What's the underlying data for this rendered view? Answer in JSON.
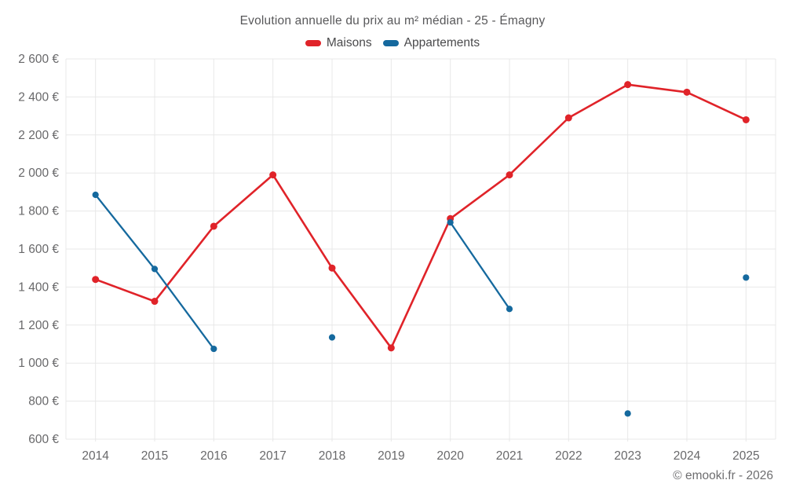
{
  "chart_data": {
    "type": "line",
    "title": "Evolution annuelle du prix au m² médian - 25 - Émagny",
    "xlabel": "",
    "ylabel": "",
    "categories": [
      "2014",
      "2015",
      "2016",
      "2017",
      "2018",
      "2019",
      "2020",
      "2021",
      "2022",
      "2023",
      "2024",
      "2025"
    ],
    "series": [
      {
        "name": "Maisons",
        "color": "#e02329",
        "values": [
          1440,
          1325,
          1720,
          1990,
          1500,
          1080,
          1760,
          1990,
          2290,
          2465,
          2425,
          2280
        ]
      },
      {
        "name": "Appartements",
        "color": "#15699e",
        "values": [
          1885,
          1495,
          1075,
          null,
          1135,
          null,
          1740,
          1285,
          null,
          735,
          null,
          1450
        ]
      }
    ],
    "ylim": [
      600,
      2600
    ],
    "ytick_step": 200,
    "ytick_unit": "€",
    "ytick_labels": [
      "600 €",
      "800 €",
      "1 000 €",
      "1 200 €",
      "1 400 €",
      "1 600 €",
      "1 800 €",
      "2 000 €",
      "2 200 €",
      "2 400 €",
      "2 600 €"
    ],
    "grid": true,
    "legend_position": "top"
  },
  "colors": {
    "grid": "#e8e8e8",
    "axis_text": "#68686a",
    "title_text": "#58585a"
  },
  "footer": {
    "credit": "© emooki.fr - 2026"
  }
}
